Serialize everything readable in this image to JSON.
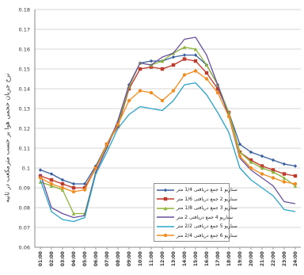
{
  "chart_data": {
    "type": "line",
    "ylabel": "نرخ جریان حجمی هوا بر حسب مترمکعب در ثانیه",
    "xlabel": "",
    "title": "",
    "ylim": [
      0.06,
      0.18
    ],
    "yticks": [
      0.06,
      0.07,
      0.08,
      0.09,
      0.1,
      0.11,
      0.12,
      0.13,
      0.14,
      0.15,
      0.16,
      0.17,
      0.18
    ],
    "grid": "horizontal",
    "legend_position": "lower-right",
    "categories": [
      "01:00",
      "02:00",
      "03:00",
      "04:00",
      "05:00",
      "06:00",
      "07:00",
      "08:00",
      "09:00",
      "10:00",
      "11:00",
      "12:00",
      "13:00",
      "14:00",
      "15:00",
      "16:00",
      "17:00",
      "18:00",
      "19:00",
      "20:00",
      "21:00",
      "22:00",
      "23:00",
      "24:00"
    ],
    "series": [
      {
        "name": "سناریو 1 جمع دریافتی 1/4 متر",
        "color": "#3a5f9f",
        "marker": "diamond",
        "values": [
          0.099,
          0.097,
          0.094,
          0.092,
          0.092,
          0.101,
          0.112,
          0.123,
          0.142,
          0.153,
          0.154,
          0.154,
          0.156,
          0.157,
          0.157,
          0.152,
          0.142,
          0.128,
          0.112,
          0.108,
          0.106,
          0.104,
          0.102,
          0.101
        ]
      },
      {
        "name": "سناریو 2 جمع دریافتی 1/6 متر",
        "color": "#c0392b",
        "marker": "square",
        "values": [
          0.096,
          0.094,
          0.092,
          0.09,
          0.09,
          0.1,
          0.112,
          0.121,
          0.14,
          0.15,
          0.151,
          0.15,
          0.152,
          0.155,
          0.154,
          0.148,
          0.14,
          0.128,
          0.108,
          0.104,
          0.101,
          0.099,
          0.097,
          0.096
        ]
      },
      {
        "name": "سناریو 3 جمع دریافتی 1/8 متر",
        "color": "#8db33a",
        "marker": "triangle",
        "values": [
          0.093,
          0.091,
          0.089,
          0.077,
          0.077,
          0.098,
          0.111,
          0.122,
          0.141,
          0.153,
          0.152,
          0.154,
          0.158,
          0.161,
          0.16,
          0.152,
          0.142,
          0.128,
          0.108,
          0.103,
          0.1,
          0.098,
          0.095,
          0.091
        ]
      },
      {
        "name": "سناریو 4 جمع دریافتی 2 متر",
        "color": "#6a4fa0",
        "marker": "none",
        "values": [
          0.097,
          0.08,
          0.077,
          0.075,
          0.076,
          0.098,
          0.11,
          0.124,
          0.142,
          0.153,
          0.152,
          0.156,
          0.158,
          0.165,
          0.166,
          0.157,
          0.142,
          0.126,
          0.105,
          0.099,
          0.095,
          0.091,
          0.083,
          0.082
        ]
      },
      {
        "name": "سناریو 5 جمع دریافتی 2/2 متر",
        "color": "#2aa3c6",
        "marker": "none",
        "values": [
          0.094,
          0.078,
          0.074,
          0.073,
          0.075,
          0.097,
          0.108,
          0.12,
          0.127,
          0.131,
          0.13,
          0.129,
          0.134,
          0.142,
          0.143,
          0.137,
          0.128,
          0.118,
          0.1,
          0.094,
          0.09,
          0.086,
          0.079,
          0.078
        ]
      },
      {
        "name": "سناریو 6 جمع دریافتی 2/4 متر",
        "color": "#f28c1e",
        "marker": "circle",
        "values": [
          0.095,
          0.092,
          0.09,
          0.088,
          0.089,
          0.1,
          0.112,
          0.122,
          0.134,
          0.139,
          0.138,
          0.134,
          0.139,
          0.147,
          0.149,
          0.145,
          0.138,
          0.126,
          0.106,
          0.1,
          0.097,
          0.095,
          0.093,
          0.092
        ]
      }
    ]
  }
}
